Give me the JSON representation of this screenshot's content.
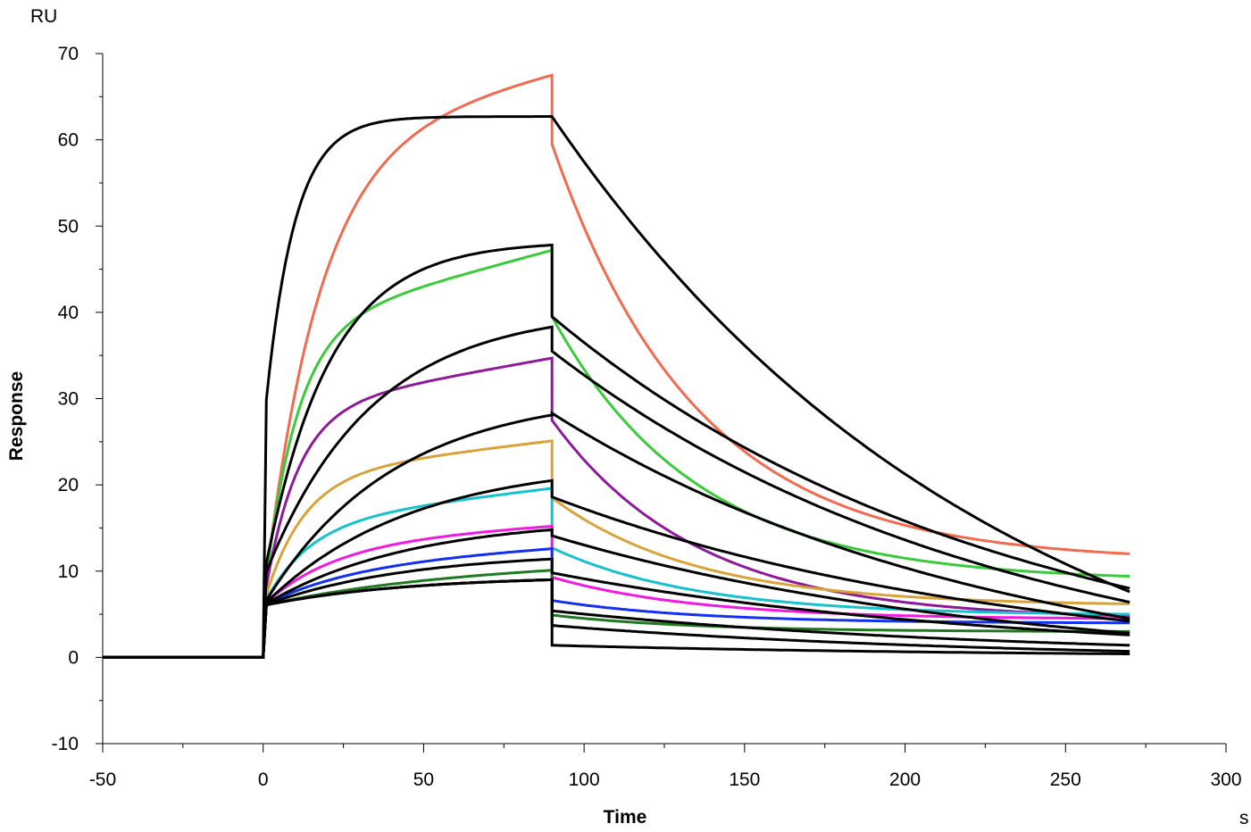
{
  "chart_data": {
    "type": "line",
    "title": "",
    "xlabel": "Time",
    "ylabel": "Response",
    "x_unit": "s",
    "y_unit": "RU",
    "xlim": [
      -50,
      300
    ],
    "ylim": [
      -10,
      70
    ],
    "x_ticks": [
      -50,
      0,
      50,
      100,
      150,
      200,
      250,
      300
    ],
    "y_ticks": [
      -10,
      0,
      10,
      20,
      30,
      40,
      50,
      60,
      70
    ],
    "grid": false,
    "legend": "none",
    "injection_start": 0,
    "injection_end": 90,
    "run_end": 270,
    "sensorgrams": [
      {
        "color": "#F26A4F",
        "association_end": 67.5,
        "association_tau": 17,
        "association_creep": 8,
        "dissociation_start": 59.5,
        "dissociation_end": 12.0
      },
      {
        "color": "#3ACB3A",
        "association_end": 47.2,
        "association_tau": 10,
        "association_creep": 9,
        "dissociation_start": 39.5,
        "dissociation_end": 9.4
      },
      {
        "color": "#8E1A9A",
        "association_end": 34.7,
        "association_tau": 10,
        "association_creep": 6,
        "dissociation_start": 27.5,
        "dissociation_end": 4.8
      },
      {
        "color": "#D9A33A",
        "association_end": 25.1,
        "association_tau": 12,
        "association_creep": 4,
        "dissociation_start": 18.5,
        "dissociation_end": 6.2
      },
      {
        "color": "#17C2CF",
        "association_end": 19.6,
        "association_tau": 14,
        "association_creep": 4,
        "dissociation_start": 12.7,
        "dissociation_end": 5.0
      },
      {
        "color": "#F21AE0",
        "association_end": 15.2,
        "association_tau": 22,
        "association_creep": 2,
        "dissociation_start": 9.3,
        "dissociation_end": 4.5
      },
      {
        "color": "#1230F0",
        "association_end": 12.6,
        "association_tau": 28,
        "association_creep": 2,
        "dissociation_start": 6.6,
        "dissociation_end": 4.0
      },
      {
        "color": "#1F7A1F",
        "association_end": 10.1,
        "association_tau": 50,
        "association_creep": 1,
        "dissociation_start": 4.9,
        "dissociation_end": 3.0
      }
    ],
    "fits": [
      {
        "association_plateau": 62.7,
        "association_tau": 9,
        "dissociation_start": 62.7,
        "dissociation_end": 7.6
      },
      {
        "association_plateau": 47.8,
        "association_tau": 20,
        "dissociation_start": 39.5,
        "dissociation_end": 8.0
      },
      {
        "association_plateau": 38.3,
        "association_tau": 33,
        "dissociation_start": 35.5,
        "dissociation_end": 6.4
      },
      {
        "association_plateau": 28.1,
        "association_tau": 40,
        "dissociation_start": 28.3,
        "dissociation_end": 4.5
      },
      {
        "association_plateau": 20.5,
        "association_tau": 45,
        "dissociation_start": 18.6,
        "dissociation_end": 4.2
      },
      {
        "association_plateau": 14.8,
        "association_tau": 45,
        "dissociation_start": 14.1,
        "dissociation_end": 2.8
      },
      {
        "association_plateau": 11.4,
        "association_tau": 45,
        "dissociation_start": 9.8,
        "dissociation_end": 2.6
      },
      {
        "association_plateau": 9.0,
        "association_tau": 45,
        "dissociation_start": 5.4,
        "dissociation_end": 1.4
      },
      {
        "association_plateau": 9.0,
        "association_tau": 45,
        "dissociation_start": 3.7,
        "dissociation_end": 0.7
      },
      {
        "association_plateau": 9.0,
        "association_tau": 45,
        "dissociation_start": 1.4,
        "dissociation_end": 0.4
      }
    ]
  }
}
